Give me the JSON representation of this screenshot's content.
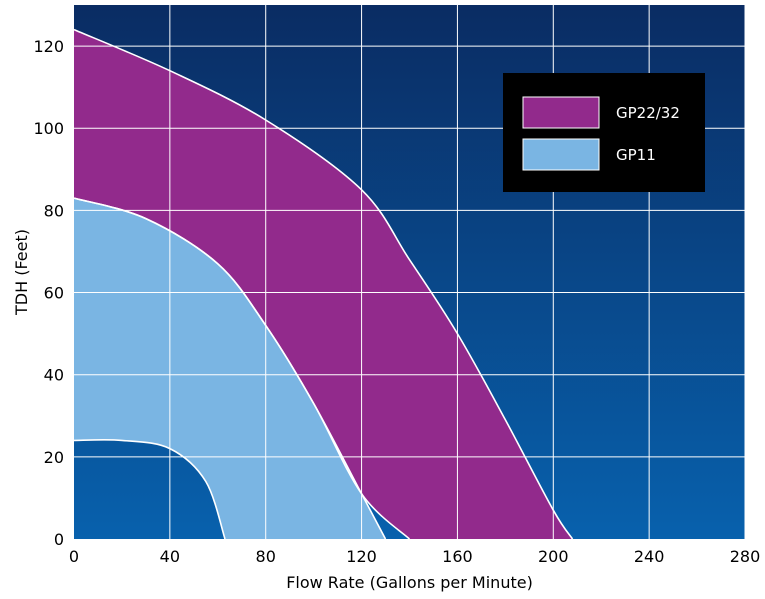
{
  "chart_data": {
    "type": "area",
    "xlabel": "Flow Rate (Gallons per Minute)",
    "ylabel": "TDH (Feet)",
    "xlim": [
      0,
      280
    ],
    "ylim": [
      0,
      130
    ],
    "x_ticks": [
      0,
      40,
      80,
      120,
      160,
      200,
      240,
      280
    ],
    "y_ticks": [
      0,
      20,
      40,
      60,
      80,
      100,
      120
    ],
    "grid": true,
    "legend_position": "top-right",
    "series": [
      {
        "name": "GP22/32",
        "color": "#922a8c",
        "lower_boundary": [
          [
            0,
            83
          ],
          [
            30,
            78
          ],
          [
            60,
            67
          ],
          [
            80,
            52
          ],
          [
            100,
            33
          ],
          [
            120,
            11
          ],
          [
            140,
            0
          ]
        ],
        "upper_boundary": [
          [
            0,
            124
          ],
          [
            40,
            114
          ],
          [
            80,
            102
          ],
          [
            120,
            85
          ],
          [
            140,
            68
          ],
          [
            160,
            50
          ],
          [
            180,
            29
          ],
          [
            200,
            7
          ],
          [
            208,
            0
          ]
        ]
      },
      {
        "name": "GP11",
        "color": "#7ab5e3",
        "lower_boundary": [
          [
            0,
            24
          ],
          [
            20,
            24
          ],
          [
            40,
            22
          ],
          [
            55,
            14
          ],
          [
            63,
            0
          ]
        ],
        "upper_boundary": [
          [
            0,
            83
          ],
          [
            30,
            78
          ],
          [
            60,
            67
          ],
          [
            80,
            52
          ],
          [
            100,
            33
          ],
          [
            120,
            11
          ],
          [
            130,
            0
          ]
        ]
      }
    ]
  },
  "colors": {
    "background_top": "#0a2c63",
    "background_bottom": "#0861ad",
    "grid": "#ffffff",
    "legend_box": "#000000"
  }
}
